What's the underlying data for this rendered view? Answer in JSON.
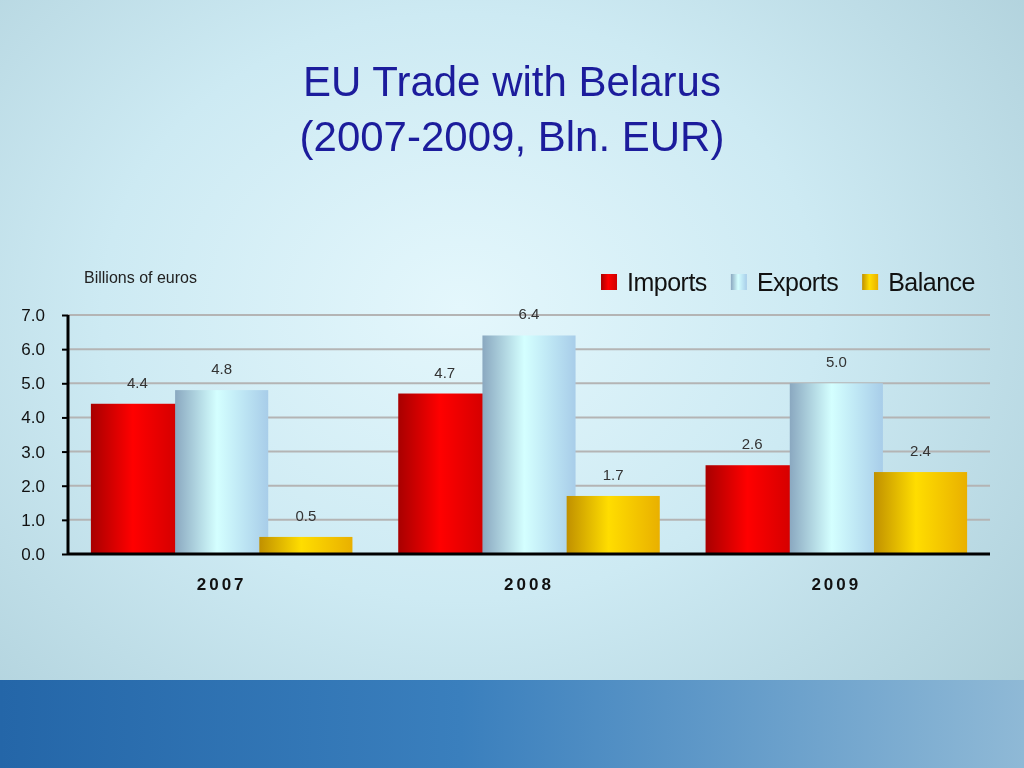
{
  "chart_data": {
    "type": "bar",
    "title": "EU Trade with Belarus",
    "subtitle": "(2007-2009, Bln. EUR)",
    "ylabel": "Billions of euros",
    "categories": [
      "2007",
      "2008",
      "2009"
    ],
    "series": [
      {
        "name": "Imports",
        "color": "#e00000",
        "values": [
          4.4,
          4.7,
          2.6
        ],
        "value_labels": [
          "4.4",
          "4.7",
          "2.6"
        ]
      },
      {
        "name": "Exports",
        "color": "#b8e0ff",
        "values": [
          4.8,
          6.4,
          5.0
        ],
        "value_labels": [
          "4.8",
          "6.4",
          "5.0"
        ]
      },
      {
        "name": "Balance",
        "color": "#ffc000",
        "values": [
          0.5,
          1.7,
          2.4
        ],
        "value_labels": [
          "0.5",
          "1.7",
          "2.4"
        ]
      }
    ],
    "ylim": [
      0,
      7
    ],
    "yticks": [
      {
        "value": 0,
        "label": "0.0"
      },
      {
        "value": 1,
        "label": "1.0"
      },
      {
        "value": 2,
        "label": "2.0"
      },
      {
        "value": 3,
        "label": "3.0"
      },
      {
        "value": 4,
        "label": "4.0"
      },
      {
        "value": 5,
        "label": "5.0"
      },
      {
        "value": 6,
        "label": "6.0"
      },
      {
        "value": 7,
        "label": "7.0"
      }
    ],
    "grid": "y",
    "legend": "top right"
  }
}
